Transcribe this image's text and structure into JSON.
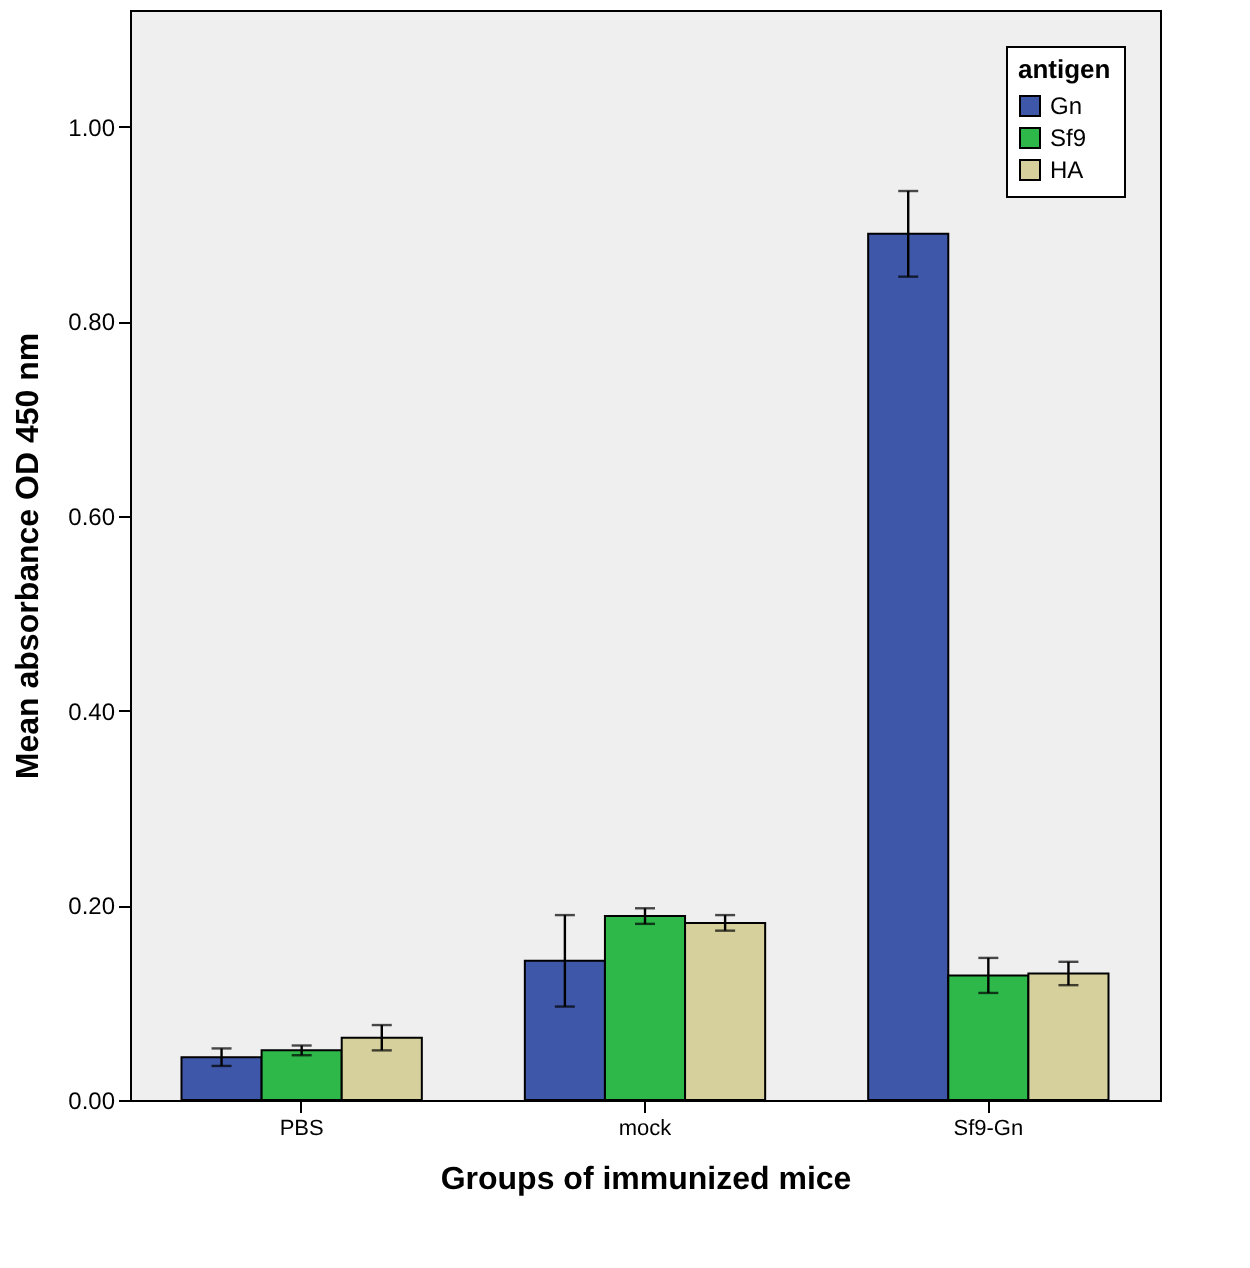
{
  "chart_data": {
    "type": "bar",
    "xlabel": "Groups of immunized mice",
    "ylabel": "Mean absorbance OD 450 nm",
    "legend_title": "antigen",
    "categories": [
      "PBS",
      "mock",
      "Sf9-Gn"
    ],
    "series": [
      {
        "name": "Gn",
        "color": "#3f57a8",
        "values": [
          0.044,
          0.143,
          0.89
        ],
        "errors": [
          0.009,
          0.047,
          0.044
        ]
      },
      {
        "name": "Sf9",
        "color": "#2eb84a",
        "values": [
          0.051,
          0.189,
          0.128
        ],
        "errors": [
          0.005,
          0.008,
          0.018
        ]
      },
      {
        "name": "HA",
        "color": "#d6d09c",
        "values": [
          0.064,
          0.182,
          0.13
        ],
        "errors": [
          0.013,
          0.008,
          0.012
        ]
      }
    ],
    "ylim": [
      0,
      1.12
    ],
    "yticks": [
      {
        "value": 0,
        "label": "0.00"
      },
      {
        "value": 0.2,
        "label": "0.20"
      },
      {
        "value": 0.4,
        "label": "0.40"
      },
      {
        "value": 0.6,
        "label": "0.60"
      },
      {
        "value": 0.8,
        "label": "0.80"
      },
      {
        "value": 1.0,
        "label": "1.00"
      }
    ],
    "legend": "top right",
    "grid": false
  }
}
